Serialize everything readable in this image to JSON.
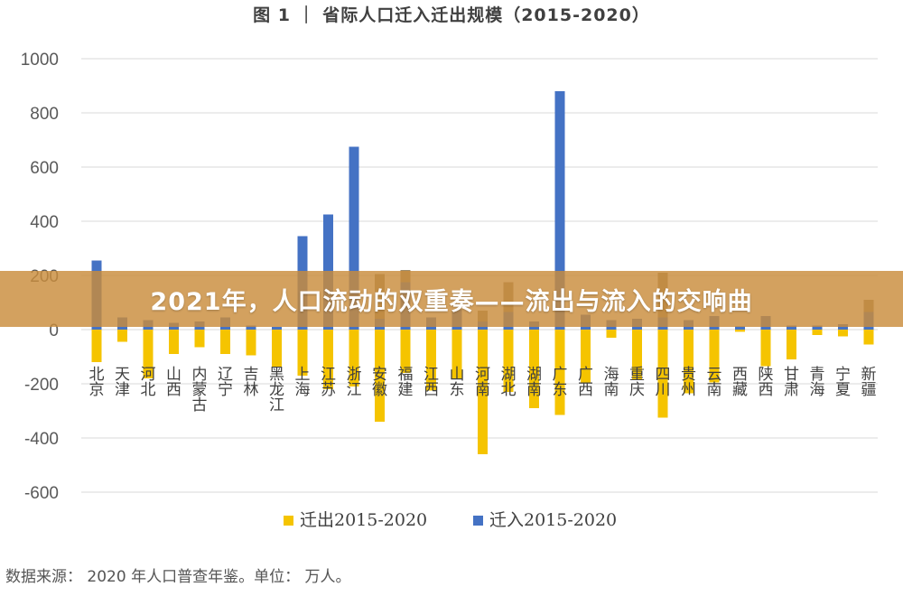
{
  "chart_data": {
    "type": "bar",
    "title": "图 1 ｜ 省际人口迁入迁出规模（2015-2020）",
    "xlabel": "",
    "ylabel": "",
    "ylim": [
      -600,
      1000
    ],
    "yticks": [
      -600,
      -400,
      -200,
      0,
      200,
      400,
      600,
      800,
      1000
    ],
    "grid": "horizontal",
    "legend_position": "bottom",
    "categories": [
      "北京",
      "天津",
      "河北",
      "山西",
      "内蒙古",
      "辽宁",
      "吉林",
      "黑龙江",
      "上海",
      "江苏",
      "浙江",
      "安徽",
      "福建",
      "江西",
      "山东",
      "河南",
      "湖北",
      "湖南",
      "广东",
      "广西",
      "海南",
      "重庆",
      "四川",
      "贵州",
      "云南",
      "西藏",
      "陕西",
      "甘肃",
      "青海",
      "宁夏",
      "新疆"
    ],
    "series": [
      {
        "name": "迁出2015-2020",
        "color": "#F5C400",
        "values": [
          -120,
          -45,
          -180,
          -90,
          -65,
          -90,
          -95,
          -140,
          -170,
          -220,
          -210,
          -340,
          -160,
          -225,
          -180,
          -460,
          -230,
          -290,
          -315,
          -195,
          -30,
          -185,
          -325,
          -235,
          -195,
          -8,
          -135,
          -110,
          -20,
          -25,
          -55
        ]
      },
      {
        "name": "迁入2015-2020",
        "color": "#4472C4",
        "values": [
          255,
          45,
          35,
          25,
          30,
          45,
          15,
          10,
          345,
          425,
          675,
          40,
          175,
          45,
          75,
          30,
          65,
          30,
          880,
          55,
          35,
          40,
          45,
          35,
          50,
          12,
          50,
          15,
          15,
          20,
          65
        ]
      }
    ],
    "overlay_bars": [
      {
        "category": "安徽",
        "value": 205
      },
      {
        "category": "福建",
        "value": 220
      },
      {
        "category": "河南",
        "value": 70
      },
      {
        "category": "湖北",
        "value": 175
      },
      {
        "category": "四川",
        "value": 210
      },
      {
        "category": "新疆",
        "value": 110
      }
    ]
  },
  "banner": {
    "text": "2021年，人口流动的双重奏——流出与流入的交响曲"
  },
  "source_note": "数据来源： 2020 年人口普查年鉴。单位： 万人。"
}
